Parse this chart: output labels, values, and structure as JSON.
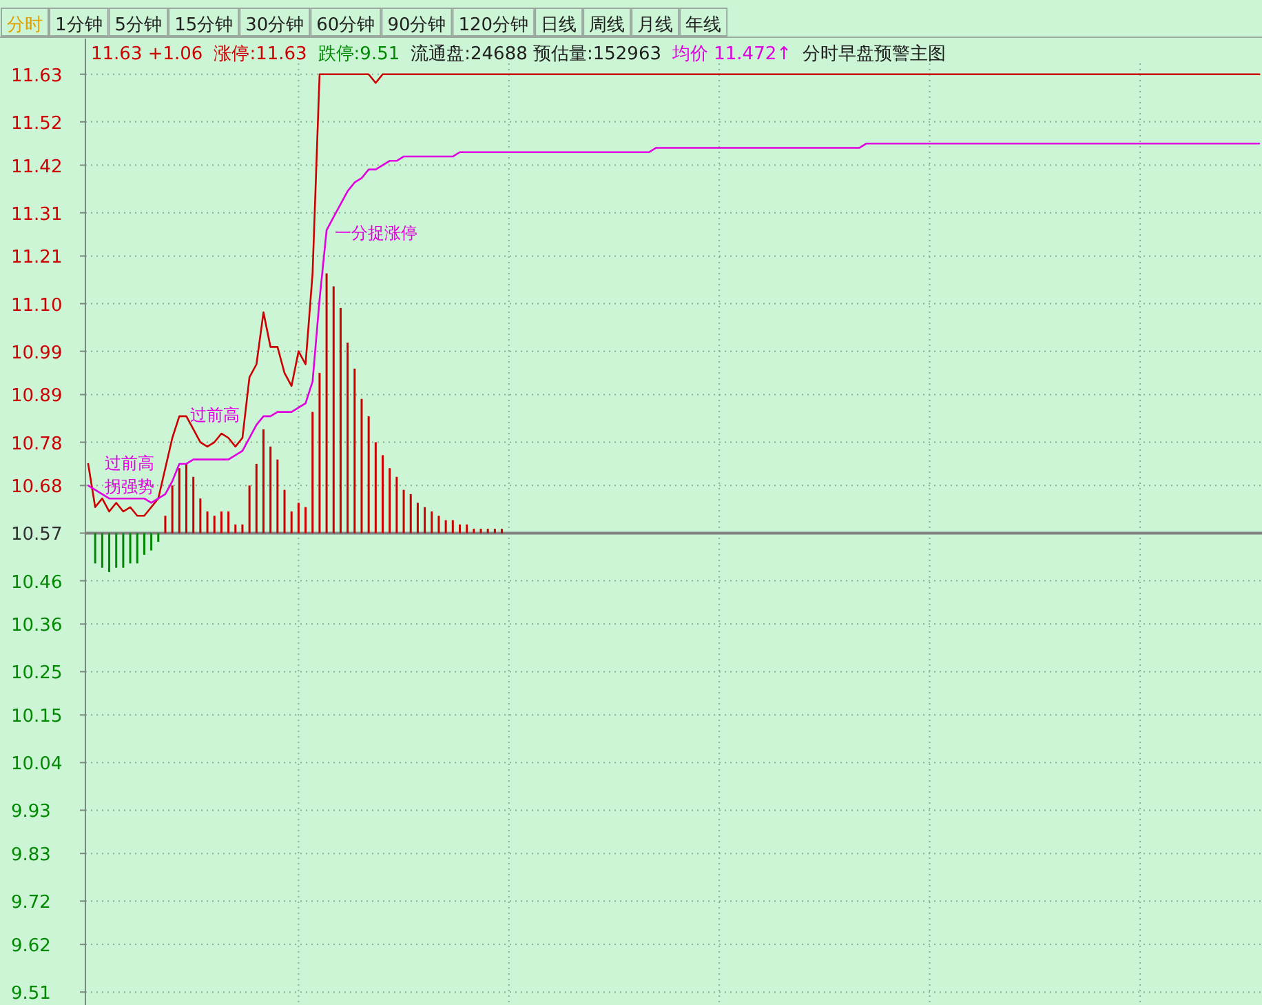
{
  "chart_data": {
    "type": "line",
    "subtitle": "分时 1分钟 5分钟 15分钟 30分钟 60分钟 90分钟 120分钟 日线 周线 月线 年线",
    "annotations": [
      "11.63 +1.06",
      "涨停:11.63",
      "跌停:9.51",
      "流通盘:24688 预估量:152963",
      "均价 11.472↑",
      "分时早盘预警主图",
      "一分捉涨停",
      "过前高",
      "过前高",
      "拐强势"
    ],
    "categories": [
      null,
      null,
      null,
      null,
      null,
      null,
      null,
      null,
      null,
      null,
      null,
      null,
      null,
      null,
      null,
      null,
      null,
      null,
      null,
      null,
      null,
      null,
      null,
      null,
      null,
      null,
      null,
      null,
      null,
      null,
      null,
      null,
      null,
      null,
      null,
      null,
      null,
      null,
      null,
      null,
      null,
      null,
      null,
      null,
      null,
      null,
      null,
      null,
      null,
      null,
      null,
      null,
      null,
      null,
      null,
      null,
      null,
      null,
      null,
      null,
      null,
      null,
      null,
      null,
      null,
      null,
      null,
      null,
      null,
      null,
      null,
      null,
      null,
      null,
      null,
      null,
      null,
      null,
      null,
      null,
      null,
      null,
      null,
      null,
      null,
      null,
      null,
      null,
      null,
      null,
      null,
      null,
      null,
      null,
      null,
      null,
      null,
      null,
      null,
      null,
      null,
      null,
      null,
      null,
      null,
      null,
      null,
      null,
      null,
      null,
      null,
      null,
      null,
      null,
      null,
      null,
      null,
      null,
      null,
      null,
      null,
      null,
      null,
      null,
      null,
      null,
      null,
      null,
      null,
      null,
      null,
      null,
      null,
      null,
      null,
      null,
      null,
      null,
      null,
      null,
      null,
      null,
      null,
      null,
      null,
      null,
      null,
      null,
      null,
      null,
      null,
      null,
      null,
      null,
      null,
      null,
      null,
      null,
      null,
      null,
      null,
      null,
      null,
      null,
      null,
      null,
      null,
      null
    ],
    "series": [
      {
        "color": "#cc0000",
        "values": [
          10.73,
          10.63,
          10.65,
          10.62,
          10.64,
          10.62,
          10.63,
          10.61,
          10.61,
          10.63,
          10.65,
          10.72,
          10.79,
          10.84,
          10.84,
          10.81,
          10.78,
          10.77,
          10.78,
          10.8,
          10.79,
          10.77,
          10.79,
          10.93,
          10.96,
          11.08,
          11.0,
          11.0,
          10.94,
          10.91,
          10.99,
          10.96,
          11.17,
          11.63,
          11.63,
          11.63,
          11.63,
          11.63,
          11.63,
          11.63,
          11.63,
          11.61,
          11.63,
          11.63,
          11.63,
          11.63,
          11.63,
          11.63,
          11.63,
          11.63,
          11.63,
          11.63,
          11.63,
          11.63,
          11.63,
          11.63,
          11.63,
          11.63,
          11.63,
          11.63,
          11.63,
          11.63,
          11.63,
          11.63,
          11.63,
          11.63,
          11.63,
          11.63,
          11.63,
          11.63,
          11.63,
          11.63,
          11.63,
          11.63,
          11.63,
          11.63,
          11.63,
          11.63,
          11.63,
          11.63,
          11.63,
          11.63,
          11.63,
          11.63,
          11.63,
          11.63,
          11.63,
          11.63,
          11.63,
          11.63,
          11.63,
          11.63,
          11.63,
          11.63,
          11.63,
          11.63,
          11.63,
          11.63,
          11.63,
          11.63,
          11.63,
          11.63,
          11.63,
          11.63,
          11.63,
          11.63,
          11.63,
          11.63,
          11.63,
          11.63,
          11.63,
          11.63,
          11.63,
          11.63,
          11.63,
          11.63,
          11.63,
          11.63,
          11.63,
          11.63,
          11.63,
          11.63,
          11.63,
          11.63,
          11.63,
          11.63,
          11.63,
          11.63,
          11.63,
          11.63,
          11.63,
          11.63,
          11.63,
          11.63,
          11.63,
          11.63,
          11.63,
          11.63,
          11.63,
          11.63,
          11.63,
          11.63,
          11.63,
          11.63,
          11.63,
          11.63,
          11.63,
          11.63,
          11.63,
          11.63,
          11.63,
          11.63,
          11.63,
          11.63,
          11.63,
          11.63,
          11.63,
          11.63,
          11.63,
          11.63,
          11.63,
          11.63,
          11.63,
          11.63,
          11.63,
          11.63,
          11.63,
          11.63
        ]
      },
      {
        "color": "#e000e0",
        "values": [
          10.68,
          10.67,
          10.66,
          10.65,
          10.65,
          10.65,
          10.65,
          10.65,
          10.65,
          10.64,
          10.65,
          10.66,
          10.69,
          10.73,
          10.73,
          10.74,
          10.74,
          10.74,
          10.74,
          10.74,
          10.74,
          10.75,
          10.76,
          10.79,
          10.82,
          10.84,
          10.84,
          10.85,
          10.85,
          10.85,
          10.86,
          10.87,
          10.92,
          11.11,
          11.27,
          11.3,
          11.33,
          11.36,
          11.38,
          11.39,
          11.41,
          11.41,
          11.42,
          11.43,
          11.43,
          11.44,
          11.44,
          11.44,
          11.44,
          11.44,
          11.44,
          11.44,
          11.44,
          11.45,
          11.45,
          11.45,
          11.45,
          11.45,
          11.45,
          11.45,
          11.45,
          11.45,
          11.45,
          11.45,
          11.45,
          11.45,
          11.45,
          11.45,
          11.45,
          11.45,
          11.45,
          11.45,
          11.45,
          11.45,
          11.45,
          11.45,
          11.45,
          11.45,
          11.45,
          11.45,
          11.45,
          11.46,
          11.46,
          11.46,
          11.46,
          11.46,
          11.46,
          11.46,
          11.46,
          11.46,
          11.46,
          11.46,
          11.46,
          11.46,
          11.46,
          11.46,
          11.46,
          11.46,
          11.46,
          11.46,
          11.46,
          11.46,
          11.46,
          11.46,
          11.46,
          11.46,
          11.46,
          11.46,
          11.46,
          11.46,
          11.46,
          11.47,
          11.47,
          11.47,
          11.47,
          11.47,
          11.47,
          11.47,
          11.47,
          11.47,
          11.47,
          11.47,
          11.47,
          11.47,
          11.47,
          11.47,
          11.47,
          11.47,
          11.47,
          11.47,
          11.47,
          11.47,
          11.47,
          11.47,
          11.47,
          11.47,
          11.47,
          11.47,
          11.47,
          11.47,
          11.47,
          11.47,
          11.47,
          11.47,
          11.47,
          11.47,
          11.47,
          11.47,
          11.47,
          11.47,
          11.47,
          11.47,
          11.47,
          11.47,
          11.47,
          11.47,
          11.47,
          11.47,
          11.47,
          11.47,
          11.47,
          11.47,
          11.47,
          11.47,
          11.47,
          11.47,
          11.47,
          11.47
        ]
      },
      {
        "type": "bar",
        "values": [
          null,
          -0.07,
          -0.08,
          -0.09,
          -0.08,
          -0.08,
          -0.07,
          -0.07,
          -0.05,
          -0.04,
          -0.02,
          0.04,
          0.11,
          0.15,
          0.16,
          0.13,
          0.08,
          0.05,
          0.04,
          0.05,
          0.05,
          0.02,
          0.02,
          0.11,
          0.16,
          0.24,
          0.2,
          0.17,
          0.1,
          0.05,
          0.07,
          0.06,
          0.28,
          0.37,
          0.6,
          0.57,
          0.52,
          0.44,
          0.38,
          0.31,
          0.27,
          0.21,
          0.18,
          0.15,
          0.13,
          0.1,
          0.09,
          0.07,
          0.06,
          0.05,
          0.04,
          0.03,
          0.03,
          0.02,
          0.02,
          0.01,
          0.01,
          0.01,
          0.01,
          0.01,
          null,
          null,
          null,
          null,
          null,
          null,
          null,
          null,
          null,
          null,
          null,
          null,
          null,
          null,
          null,
          null,
          null,
          null,
          null,
          null,
          null,
          null,
          null,
          null,
          null,
          null,
          null,
          null,
          null,
          null,
          null,
          null,
          null,
          null,
          null,
          null,
          null,
          null,
          null,
          null,
          null,
          null,
          null,
          null,
          null,
          null,
          null,
          null,
          null,
          null,
          null,
          null,
          null,
          null,
          null,
          null,
          null,
          null,
          null,
          null,
          null,
          null,
          null,
          null,
          null,
          null,
          null,
          null,
          null,
          null,
          null,
          null,
          null,
          null,
          null,
          null,
          null,
          null,
          null,
          null,
          null,
          null,
          null,
          null,
          null,
          null,
          null,
          null,
          null,
          null,
          null,
          null,
          null,
          null,
          null,
          null,
          null,
          null,
          null,
          null,
          null,
          null,
          null,
          null,
          null,
          null,
          null,
          null
        ],
        "base": [
          null,
          10.57,
          10.57,
          10.57,
          10.57,
          10.57,
          10.57,
          10.57,
          10.57,
          10.57,
          10.57,
          10.57,
          10.57,
          10.57,
          10.57,
          10.57,
          10.57,
          10.57,
          10.57,
          10.57,
          10.57,
          10.57,
          10.57,
          10.57,
          10.57,
          10.57,
          10.57,
          10.57,
          10.57,
          10.57,
          10.57,
          10.57,
          10.57,
          10.57,
          10.57,
          10.57,
          10.57,
          10.57,
          10.57,
          10.57,
          10.57,
          10.57,
          10.57,
          10.57,
          10.57,
          10.57,
          10.57,
          10.57,
          10.57,
          10.57,
          10.57,
          10.57,
          10.57,
          10.57,
          10.57,
          10.57,
          10.57,
          10.57,
          10.57,
          10.57,
          null,
          null,
          null,
          null,
          null,
          null,
          null,
          null,
          null,
          null,
          null,
          null,
          null,
          null,
          null,
          null,
          null,
          null,
          null,
          null,
          null,
          null,
          null,
          null,
          null,
          null,
          null,
          null,
          null,
          null,
          null,
          null,
          null,
          null,
          null,
          null,
          null,
          null,
          null,
          null,
          null,
          null,
          null,
          null,
          null,
          null,
          null,
          null,
          null,
          null,
          null,
          null,
          null,
          null,
          null,
          null,
          null,
          null,
          null,
          null,
          null,
          null,
          null,
          null,
          null,
          null,
          null,
          null,
          null,
          null,
          null,
          null,
          null,
          null,
          null,
          null,
          null,
          null,
          null,
          null,
          null,
          null,
          null,
          null,
          null,
          null,
          null,
          null,
          null,
          null,
          null,
          null,
          null,
          null,
          null,
          null,
          null,
          null,
          null,
          null,
          null,
          null,
          null,
          null,
          null,
          null,
          null,
          null
        ],
        "colors": [
          null,
          "#008800",
          "#008800",
          "#008800",
          "#008800",
          "#008800",
          "#008800",
          "#008800",
          "#008800",
          "#008800",
          "#008800",
          "#cc0000",
          "#cc0000",
          "#cc0000",
          "#cc0000",
          "#cc0000",
          "#cc0000",
          "#cc0000",
          "#cc0000",
          "#cc0000",
          "#cc0000",
          "#cc0000",
          "#cc0000",
          "#cc0000",
          "#cc0000",
          "#cc0000",
          "#cc0000",
          "#cc0000",
          "#cc0000",
          "#cc0000",
          "#cc0000",
          "#cc0000",
          "#cc0000",
          "#cc0000",
          "#cc0000",
          "#cc0000",
          "#cc0000",
          "#cc0000",
          "#cc0000",
          "#cc0000",
          "#cc0000",
          "#cc0000",
          "#cc0000",
          "#cc0000",
          "#cc0000",
          "#cc0000",
          "#cc0000",
          "#cc0000",
          "#cc0000",
          "#cc0000",
          "#cc0000",
          "#cc0000",
          "#cc0000",
          "#cc0000",
          "#cc0000",
          "#cc0000",
          "#cc0000",
          "#cc0000",
          "#cc0000",
          "#cc0000",
          null,
          null,
          null,
          null,
          null,
          null,
          null,
          null,
          null,
          null,
          null,
          null,
          null,
          null,
          null,
          null,
          null,
          null,
          null,
          null,
          null,
          null,
          null,
          null,
          null,
          null,
          null,
          null,
          null,
          null,
          null,
          null,
          null,
          null,
          null,
          null,
          null,
          null,
          null,
          null,
          null,
          null,
          null,
          null,
          null,
          null,
          null,
          null,
          null,
          null,
          null,
          null,
          null,
          null,
          null,
          null,
          null,
          null,
          null,
          null,
          null,
          null,
          null,
          null,
          null,
          null,
          null,
          null,
          null,
          null,
          null,
          null,
          null,
          null,
          null,
          null,
          null,
          null,
          null,
          null,
          null,
          null,
          null,
          null,
          null,
          null,
          null,
          null,
          null,
          null,
          null,
          null,
          null,
          null,
          null,
          null,
          null,
          null,
          null,
          null,
          null,
          null,
          null,
          null,
          null,
          null,
          null,
          null
        ]
      }
    ],
    "ylim": [
      9.48,
      11.655
    ],
    "yticks": [
      9.51,
      9.62,
      9.72,
      9.83,
      9.93,
      10.04,
      10.15,
      10.25,
      10.36,
      10.46,
      10.57,
      10.68,
      10.78,
      10.89,
      10.99,
      {
        "value": 11.1,
        "label": "11.10"
      },
      11.21,
      11.31,
      11.42,
      11.52,
      11.63
    ],
    "ref_lines": [
      {
        "axis": "y",
        "value": 10.57,
        "color": "#808080"
      }
    ],
    "grid": true,
    "line_style": "solid"
  }
}
